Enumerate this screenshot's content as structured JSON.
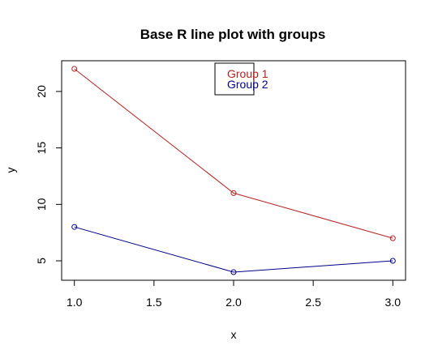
{
  "chart_data": {
    "type": "line",
    "title": "Base R line plot with groups",
    "xlabel": "x",
    "ylabel": "y",
    "xlim": [
      0.92,
      3.08
    ],
    "ylim": [
      3.28,
      22.72
    ],
    "x_ticks": [
      1.0,
      1.5,
      2.0,
      2.5,
      3.0
    ],
    "x_tick_labels": [
      "1.0",
      "1.5",
      "2.0",
      "2.5",
      "3.0"
    ],
    "y_ticks": [
      5,
      10,
      15,
      20
    ],
    "y_tick_labels": [
      "5",
      "10",
      "15",
      "20"
    ],
    "grid": false,
    "legend_position": "top-center",
    "series": [
      {
        "name": "Group 1",
        "color": "#b22222",
        "x": [
          1,
          2,
          3
        ],
        "y": [
          22,
          11,
          7
        ]
      },
      {
        "name": "Group 2",
        "color": "#00008b",
        "x": [
          1,
          2,
          3
        ],
        "y": [
          8,
          4,
          5
        ]
      }
    ]
  }
}
